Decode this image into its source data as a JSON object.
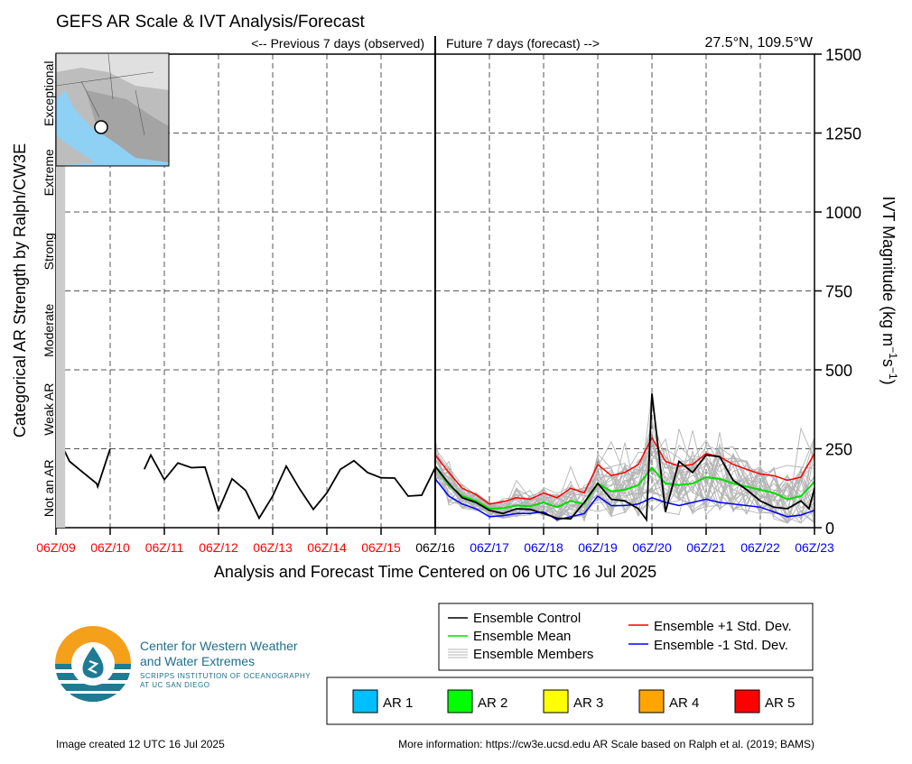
{
  "title": "GEFS AR Scale & IVT Analysis/Forecast",
  "prev_label": "<-- Previous 7 days (observed)",
  "future_label": "Future 7 days (forecast) -->",
  "location": "27.5°N, 109.5°W",
  "left_axis_label": "Categorical AR Strength by Ralph/CW3E",
  "right_axis_label": "IVT Magnitude (kg m",
  "right_axis_sup1": "−1",
  "right_axis_mid": "s",
  "right_axis_sup2": "−1",
  "right_axis_end": ")",
  "xlabel": "Analysis and Forecast Time Centered on 06 UTC 16 Jul 2025",
  "categories": [
    "Not an AR",
    "Weak AR",
    "Moderate",
    "Strong",
    "Extreme",
    "Exceptional"
  ],
  "legend": {
    "control": "Ensemble Control",
    "mean": "Ensemble Mean",
    "members": "Ensemble Members",
    "plus": "Ensemble +1 Std. Dev.",
    "minus": "Ensemble -1 Std. Dev."
  },
  "ar_legend": [
    "AR 1",
    "AR 2",
    "AR 3",
    "AR 4",
    "AR 5"
  ],
  "ar_colors": [
    "#00bfff",
    "#00ff00",
    "#ffff00",
    "#ffa500",
    "#ff0000"
  ],
  "logo_text": {
    "line1": "Center for Western Weather",
    "line2": "and Water Extremes",
    "line3": "SCRIPPS INSTITUTION OF OCEANOGRAPHY",
    "line4": "AT UC SAN DIEGO"
  },
  "footer_left": "Image created 12 UTC 16 Jul 2025",
  "footer_right": "More information: https://cw3e.ucsd.edu AR Scale based on Ralph et al. (2019; BAMS)",
  "colors": {
    "observed": "#ff0000",
    "forecast": "#0000ff",
    "control": "#000000",
    "mean": "#00dd00",
    "plus": "#ff0000",
    "minus": "#0000ff",
    "members": "#b4b4b4"
  },
  "chart_data": {
    "type": "line",
    "x_unit": "days from 06Z/09 Jul 2025",
    "xlim": [
      0,
      14
    ],
    "ylim": [
      0,
      1500
    ],
    "y_ticks": [
      0,
      250,
      500,
      750,
      1000,
      1250,
      1500
    ],
    "ylabel": "IVT Magnitude (kg m-1 s-1)",
    "x_ticks": [
      {
        "x": 0,
        "label": "06Z/09",
        "period": "observed"
      },
      {
        "x": 1,
        "label": "06Z/10",
        "period": "observed"
      },
      {
        "x": 2,
        "label": "06Z/11",
        "period": "observed"
      },
      {
        "x": 3,
        "label": "06Z/12",
        "period": "observed"
      },
      {
        "x": 4,
        "label": "06Z/13",
        "period": "observed"
      },
      {
        "x": 5,
        "label": "06Z/14",
        "period": "observed"
      },
      {
        "x": 6,
        "label": "06Z/15",
        "period": "observed"
      },
      {
        "x": 7,
        "label": "06Z/16",
        "period": "now"
      },
      {
        "x": 8,
        "label": "06Z/17",
        "period": "forecast"
      },
      {
        "x": 9,
        "label": "06Z/18",
        "period": "forecast"
      },
      {
        "x": 10,
        "label": "06Z/19",
        "period": "forecast"
      },
      {
        "x": 11,
        "label": "06Z/20",
        "period": "forecast"
      },
      {
        "x": 12,
        "label": "06Z/21",
        "period": "forecast"
      },
      {
        "x": 13,
        "label": "06Z/22",
        "period": "forecast"
      },
      {
        "x": 14,
        "label": "06Z/23",
        "period": "forecast"
      }
    ],
    "category_thresholds": [
      250,
      500,
      750,
      1000,
      1250
    ],
    "ar_category_bar": [
      {
        "x_start": 0,
        "x_end": 0.17,
        "category": "Not an AR"
      }
    ],
    "observed_segments": [
      [
        [
          0,
          300
        ],
        [
          0.25,
          210
        ],
        [
          0.5,
          175
        ],
        [
          0.75,
          140
        ],
        [
          0.77,
          130
        ],
        [
          1.0,
          250
        ]
      ],
      [
        [
          1.63,
          185
        ],
        [
          1.75,
          230
        ],
        [
          2.0,
          152
        ],
        [
          2.25,
          205
        ],
        [
          2.5,
          190
        ],
        [
          2.75,
          192
        ],
        [
          3.0,
          55
        ],
        [
          3.25,
          155
        ],
        [
          3.5,
          118
        ],
        [
          3.75,
          30
        ],
        [
          4.0,
          100
        ],
        [
          4.25,
          195
        ],
        [
          4.5,
          122
        ],
        [
          4.75,
          58
        ],
        [
          5.0,
          110
        ],
        [
          5.25,
          185
        ],
        [
          5.5,
          212
        ],
        [
          5.75,
          175
        ],
        [
          6.0,
          158
        ],
        [
          6.25,
          157
        ],
        [
          6.5,
          100
        ],
        [
          6.75,
          103
        ],
        [
          7.0,
          190
        ]
      ]
    ],
    "series": [
      {
        "name": "Ensemble Control",
        "values": [
          [
            7.0,
            195
          ],
          [
            7.25,
            140
          ],
          [
            7.5,
            95
          ],
          [
            7.75,
            80
          ],
          [
            8.0,
            55
          ],
          [
            8.25,
            45
          ],
          [
            8.5,
            60
          ],
          [
            8.75,
            58
          ],
          [
            9.0,
            45
          ],
          [
            9.25,
            30
          ],
          [
            9.5,
            28
          ],
          [
            9.75,
            80
          ],
          [
            10.0,
            140
          ],
          [
            10.25,
            90
          ],
          [
            10.5,
            85
          ],
          [
            10.75,
            60
          ],
          [
            10.9,
            25
          ],
          [
            11.0,
            425
          ],
          [
            11.25,
            50
          ],
          [
            11.5,
            210
          ],
          [
            11.75,
            175
          ],
          [
            12.0,
            230
          ],
          [
            12.25,
            225
          ],
          [
            12.5,
            150
          ],
          [
            12.75,
            120
          ],
          [
            13.0,
            85
          ],
          [
            13.25,
            65
          ],
          [
            13.5,
            60
          ],
          [
            13.75,
            85
          ],
          [
            13.9,
            60
          ],
          [
            14.0,
            125
          ]
        ]
      },
      {
        "name": "Ensemble Mean",
        "values": [
          [
            7.0,
            195
          ],
          [
            7.25,
            135
          ],
          [
            7.5,
            100
          ],
          [
            7.75,
            85
          ],
          [
            8.0,
            60
          ],
          [
            8.25,
            62
          ],
          [
            8.5,
            70
          ],
          [
            8.75,
            68
          ],
          [
            9.0,
            80
          ],
          [
            9.25,
            65
          ],
          [
            9.5,
            85
          ],
          [
            9.75,
            75
          ],
          [
            10.0,
            140
          ],
          [
            10.25,
            115
          ],
          [
            10.5,
            120
          ],
          [
            10.75,
            135
          ],
          [
            11.0,
            190
          ],
          [
            11.25,
            140
          ],
          [
            11.5,
            135
          ],
          [
            11.75,
            140
          ],
          [
            12.0,
            160
          ],
          [
            12.25,
            155
          ],
          [
            12.5,
            140
          ],
          [
            12.75,
            130
          ],
          [
            13.0,
            120
          ],
          [
            13.25,
            110
          ],
          [
            13.5,
            90
          ],
          [
            13.75,
            100
          ],
          [
            14.0,
            145
          ]
        ]
      },
      {
        "name": "Ensemble +1 Std. Dev.",
        "values": [
          [
            7.0,
            230
          ],
          [
            7.25,
            175
          ],
          [
            7.5,
            125
          ],
          [
            7.75,
            105
          ],
          [
            8.0,
            75
          ],
          [
            8.25,
            82
          ],
          [
            8.5,
            95
          ],
          [
            8.75,
            90
          ],
          [
            9.0,
            110
          ],
          [
            9.25,
            95
          ],
          [
            9.5,
            125
          ],
          [
            9.75,
            110
          ],
          [
            10.0,
            200
          ],
          [
            10.25,
            165
          ],
          [
            10.5,
            175
          ],
          [
            10.75,
            200
          ],
          [
            11.0,
            285
          ],
          [
            11.25,
            210
          ],
          [
            11.5,
            195
          ],
          [
            11.75,
            200
          ],
          [
            12.0,
            235
          ],
          [
            12.25,
            225
          ],
          [
            12.5,
            200
          ],
          [
            12.75,
            185
          ],
          [
            13.0,
            170
          ],
          [
            13.25,
            165
          ],
          [
            13.5,
            150
          ],
          [
            13.75,
            160
          ],
          [
            14.0,
            235
          ]
        ]
      },
      {
        "name": "Ensemble -1 Std. Dev.",
        "values": [
          [
            7.0,
            155
          ],
          [
            7.25,
            100
          ],
          [
            7.5,
            75
          ],
          [
            7.75,
            60
          ],
          [
            8.0,
            35
          ],
          [
            8.25,
            38
          ],
          [
            8.5,
            45
          ],
          [
            8.75,
            45
          ],
          [
            9.0,
            50
          ],
          [
            9.25,
            25
          ],
          [
            9.5,
            35
          ],
          [
            9.75,
            45
          ],
          [
            10.0,
            100
          ],
          [
            10.25,
            70
          ],
          [
            10.5,
            70
          ],
          [
            10.75,
            75
          ],
          [
            11.0,
            95
          ],
          [
            11.25,
            80
          ],
          [
            11.5,
            70
          ],
          [
            11.75,
            80
          ],
          [
            12.0,
            90
          ],
          [
            12.25,
            80
          ],
          [
            12.5,
            75
          ],
          [
            12.75,
            70
          ],
          [
            13.0,
            65
          ],
          [
            13.25,
            50
          ],
          [
            13.5,
            35
          ],
          [
            13.75,
            40
          ],
          [
            14.0,
            55
          ]
        ]
      }
    ],
    "members_range": {
      "x_start": 7,
      "x_end": 14,
      "min": 15,
      "max": 450
    }
  }
}
